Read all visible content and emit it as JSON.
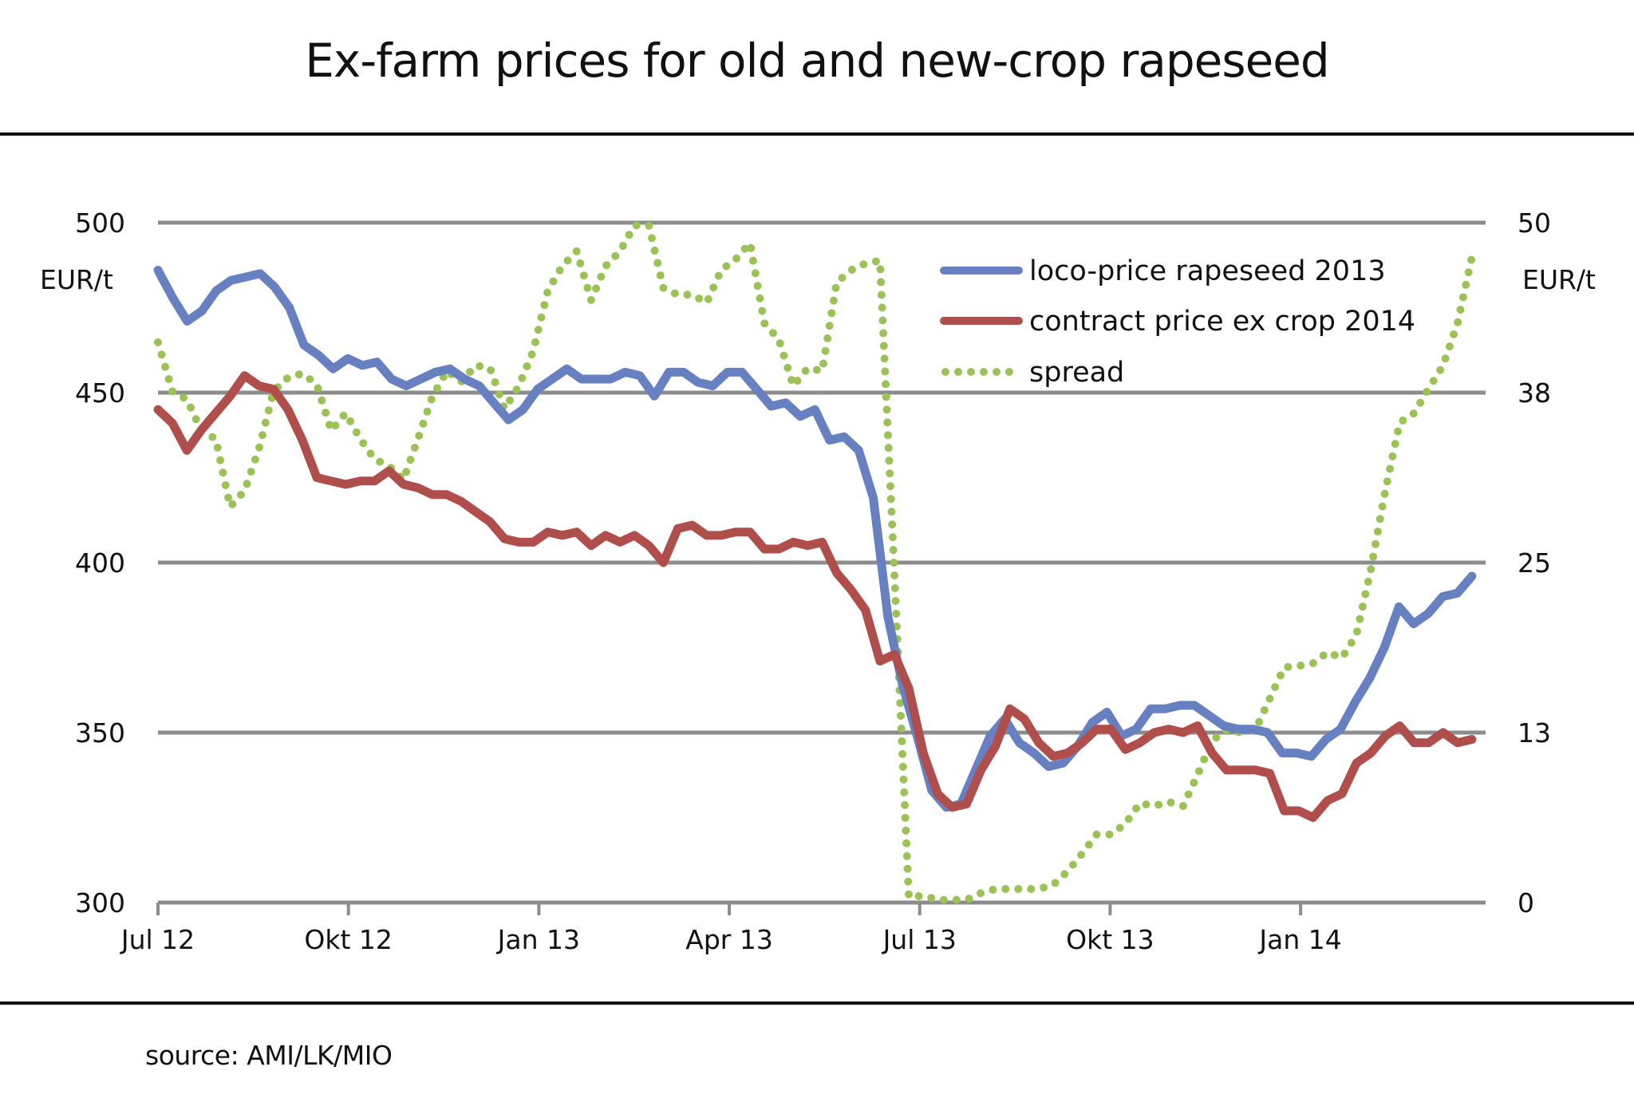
{
  "chart_data": {
    "type": "line",
    "title": "Ex-farm prices for old and new-crop rapeseed",
    "source": "source: AMI/LK/MIO",
    "x_unit": "week",
    "x_span_weeks": 89.7,
    "x_ticks": [
      {
        "label": "Jul 12",
        "week": 0
      },
      {
        "label": "Okt 12",
        "week": 13
      },
      {
        "label": "Jan 13",
        "week": 26
      },
      {
        "label": "Apr 13",
        "week": 39
      },
      {
        "label": "Jul 13",
        "week": 52
      },
      {
        "label": "Okt 13",
        "week": 65
      },
      {
        "label": "Jan 14",
        "week": 78
      }
    ],
    "x_axis_end_week": 90.6,
    "y_left": {
      "label": "EUR/t",
      "ylim": [
        300,
        500
      ],
      "ticks": [
        "500",
        "450",
        "400",
        "350",
        "300"
      ],
      "tick_values": [
        500,
        450,
        400,
        350,
        300
      ]
    },
    "y_right": {
      "label": "EUR/t",
      "ylim": [
        0,
        50
      ],
      "ticks": [
        "50",
        "38",
        "25",
        "13",
        "0"
      ],
      "tick_values": [
        50,
        37.5,
        25,
        12.5,
        0
      ]
    },
    "grid": true,
    "legend_position": "top-right",
    "series": [
      {
        "name": "loco-price rapeseed 2013",
        "axis": "left",
        "style": "solid",
        "color": "#6680C2",
        "values": [
          486,
          478,
          471,
          474,
          480,
          483,
          484,
          485,
          481,
          475,
          464,
          461,
          457,
          460,
          458,
          459,
          454,
          452,
          454,
          456,
          457,
          454,
          452,
          447,
          442,
          445,
          451,
          454,
          457,
          454,
          454,
          454,
          456,
          455,
          449,
          456,
          456,
          453,
          452,
          456,
          456,
          451,
          446,
          447,
          443,
          445,
          436,
          437,
          433,
          419,
          384,
          364,
          349,
          333,
          328,
          329,
          339,
          349,
          354,
          347,
          344,
          340,
          341,
          346,
          353,
          356,
          349,
          351,
          357,
          357,
          358,
          358,
          355,
          352,
          351,
          351,
          350,
          344,
          344,
          343,
          348,
          351,
          359,
          366,
          375,
          387,
          382,
          385,
          390,
          391,
          396
        ]
      },
      {
        "name": "contract price ex crop 2014",
        "axis": "left",
        "style": "solid",
        "color": "#B04E4C",
        "values": [
          445,
          441,
          433,
          439,
          444,
          449,
          455,
          452,
          451,
          445,
          436,
          425,
          424,
          423,
          424,
          424,
          427,
          423,
          422,
          420,
          420,
          418,
          415,
          412,
          407,
          406,
          406,
          409,
          408,
          409,
          405,
          408,
          406,
          408,
          405,
          400,
          410,
          411,
          408,
          408,
          409,
          409,
          404,
          404,
          406,
          405,
          406,
          397,
          392,
          386,
          371,
          373,
          363,
          344,
          332,
          328,
          329,
          339,
          346,
          357,
          354,
          347,
          343,
          344,
          347,
          351,
          351,
          345,
          347,
          350,
          351,
          350,
          352,
          344,
          339,
          339,
          339,
          338,
          327,
          327,
          325,
          330,
          332,
          341,
          344,
          349,
          352,
          347,
          347,
          350,
          347,
          348
        ]
      },
      {
        "name": "spread",
        "axis": "right",
        "style": "dotted",
        "color": "#9BC255",
        "values": [
          41.2,
          37.6,
          37,
          34.7,
          34.1,
          29.1,
          30.3,
          33.4,
          37.6,
          38.6,
          38.9,
          38.1,
          34.7,
          36,
          34.1,
          32.6,
          32.1,
          31.1,
          34.1,
          37.2,
          39.1,
          38.3,
          39.5,
          39.3,
          36.3,
          38,
          40.6,
          45,
          46.8,
          47.9,
          44.3,
          46.8,
          47.9,
          49.8,
          49.8,
          45.2,
          44.7,
          44.7,
          44.1,
          46.5,
          47.3,
          48.5,
          42.6,
          41.4,
          38,
          39.3,
          39.1,
          45.6,
          46.5,
          47,
          47.2,
          24.2,
          0.4,
          0.5,
          0.2,
          0.2,
          0.2,
          0.7,
          1,
          1,
          1,
          1,
          1.3,
          2.3,
          3.6,
          5,
          5,
          5.8,
          7.3,
          7.1,
          7.4,
          7.1,
          9.4,
          11.9,
          12.7,
          12.5,
          12.7,
          15,
          17.3,
          17.4,
          17.6,
          18.4,
          18,
          19.7,
          24.5,
          30.3,
          35.3,
          36,
          37.8,
          39.5,
          42.6,
          47.5
        ]
      }
    ],
    "colors": {
      "grid": "#8C8C8C",
      "rule": "#111111"
    }
  }
}
